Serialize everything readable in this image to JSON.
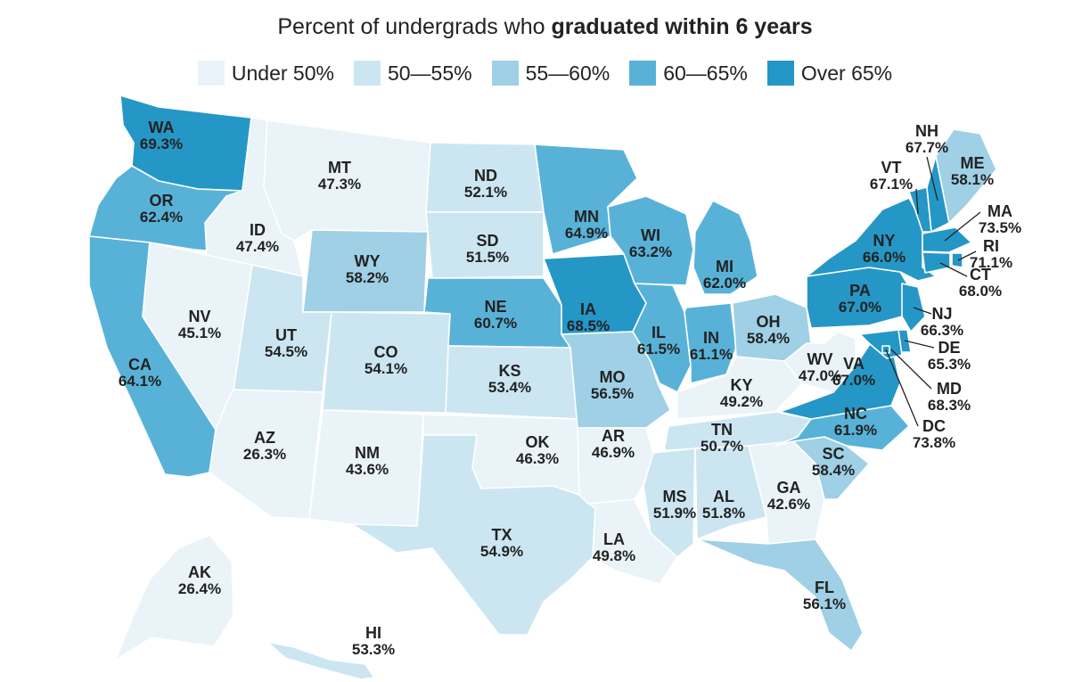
{
  "title": {
    "prefix": "Percent of undergrads who",
    "bold": "graduated within 6 years"
  },
  "legend": [
    {
      "label": "Under 50%",
      "color": "#e9f3f8"
    },
    {
      "label": "50—55%",
      "color": "#cce6f1"
    },
    {
      "label": "55—60%",
      "color": "#9fd0e5"
    },
    {
      "label": "60—65%",
      "color": "#58b2d8"
    },
    {
      "label": "Over 65%",
      "color": "#2597c6"
    }
  ],
  "states": [
    {
      "abbr": "WA",
      "value": "69.3%",
      "color": "#2597c6"
    },
    {
      "abbr": "OR",
      "value": "62.4%",
      "color": "#58b2d8"
    },
    {
      "abbr": "CA",
      "value": "64.1%",
      "color": "#58b2d8"
    },
    {
      "abbr": "NV",
      "value": "45.1%",
      "color": "#e9f3f8"
    },
    {
      "abbr": "ID",
      "value": "47.4%",
      "color": "#e9f3f8"
    },
    {
      "abbr": "MT",
      "value": "47.3%",
      "color": "#e9f3f8"
    },
    {
      "abbr": "WY",
      "value": "58.2%",
      "color": "#9fd0e5"
    },
    {
      "abbr": "UT",
      "value": "54.5%",
      "color": "#cce6f1"
    },
    {
      "abbr": "AZ",
      "value": "26.3%",
      "color": "#e9f3f8"
    },
    {
      "abbr": "CO",
      "value": "54.1%",
      "color": "#cce6f1"
    },
    {
      "abbr": "NM",
      "value": "43.6%",
      "color": "#e9f3f8"
    },
    {
      "abbr": "ND",
      "value": "52.1%",
      "color": "#cce6f1"
    },
    {
      "abbr": "SD",
      "value": "51.5%",
      "color": "#cce6f1"
    },
    {
      "abbr": "NE",
      "value": "60.7%",
      "color": "#58b2d8"
    },
    {
      "abbr": "KS",
      "value": "53.4%",
      "color": "#cce6f1"
    },
    {
      "abbr": "OK",
      "value": "46.3%",
      "color": "#e9f3f8"
    },
    {
      "abbr": "TX",
      "value": "54.9%",
      "color": "#cce6f1"
    },
    {
      "abbr": "MN",
      "value": "64.9%",
      "color": "#58b2d8"
    },
    {
      "abbr": "IA",
      "value": "68.5%",
      "color": "#2597c6"
    },
    {
      "abbr": "MO",
      "value": "56.5%",
      "color": "#9fd0e5"
    },
    {
      "abbr": "AR",
      "value": "46.9%",
      "color": "#e9f3f8"
    },
    {
      "abbr": "LA",
      "value": "49.8%",
      "color": "#e9f3f8"
    },
    {
      "abbr": "WI",
      "value": "63.2%",
      "color": "#58b2d8"
    },
    {
      "abbr": "IL",
      "value": "61.5%",
      "color": "#58b2d8"
    },
    {
      "abbr": "MI",
      "value": "62.0%",
      "color": "#58b2d8"
    },
    {
      "abbr": "IN",
      "value": "61.1%",
      "color": "#58b2d8"
    },
    {
      "abbr": "OH",
      "value": "58.4%",
      "color": "#9fd0e5"
    },
    {
      "abbr": "KY",
      "value": "49.2%",
      "color": "#e9f3f8"
    },
    {
      "abbr": "TN",
      "value": "50.7%",
      "color": "#cce6f1"
    },
    {
      "abbr": "MS",
      "value": "51.9%",
      "color": "#cce6f1"
    },
    {
      "abbr": "AL",
      "value": "51.8%",
      "color": "#cce6f1"
    },
    {
      "abbr": "GA",
      "value": "42.6%",
      "color": "#e9f3f8"
    },
    {
      "abbr": "FL",
      "value": "56.1%",
      "color": "#9fd0e5"
    },
    {
      "abbr": "SC",
      "value": "58.4%",
      "color": "#9fd0e5"
    },
    {
      "abbr": "NC",
      "value": "61.9%",
      "color": "#58b2d8"
    },
    {
      "abbr": "VA",
      "value": "67.0%",
      "color": "#2597c6"
    },
    {
      "abbr": "WV",
      "value": "47.0%",
      "color": "#e9f3f8"
    },
    {
      "abbr": "PA",
      "value": "67.0%",
      "color": "#2597c6"
    },
    {
      "abbr": "NY",
      "value": "66.0%",
      "color": "#2597c6"
    },
    {
      "abbr": "VT",
      "value": "67.1%",
      "color": "#2597c6"
    },
    {
      "abbr": "NH",
      "value": "67.7%",
      "color": "#2597c6"
    },
    {
      "abbr": "ME",
      "value": "58.1%",
      "color": "#9fd0e5"
    },
    {
      "abbr": "MA",
      "value": "73.5%",
      "color": "#2597c6"
    },
    {
      "abbr": "RI",
      "value": "71.1%",
      "color": "#2597c6"
    },
    {
      "abbr": "CT",
      "value": "68.0%",
      "color": "#2597c6"
    },
    {
      "abbr": "NJ",
      "value": "66.3%",
      "color": "#2597c6"
    },
    {
      "abbr": "DE",
      "value": "65.3%",
      "color": "#2597c6"
    },
    {
      "abbr": "MD",
      "value": "68.3%",
      "color": "#2597c6"
    },
    {
      "abbr": "DC",
      "value": "73.8%",
      "color": "#2597c6"
    },
    {
      "abbr": "AK",
      "value": "26.4%",
      "color": "#e9f3f8"
    },
    {
      "abbr": "HI",
      "value": "53.3%",
      "color": "#cce6f1"
    }
  ]
}
